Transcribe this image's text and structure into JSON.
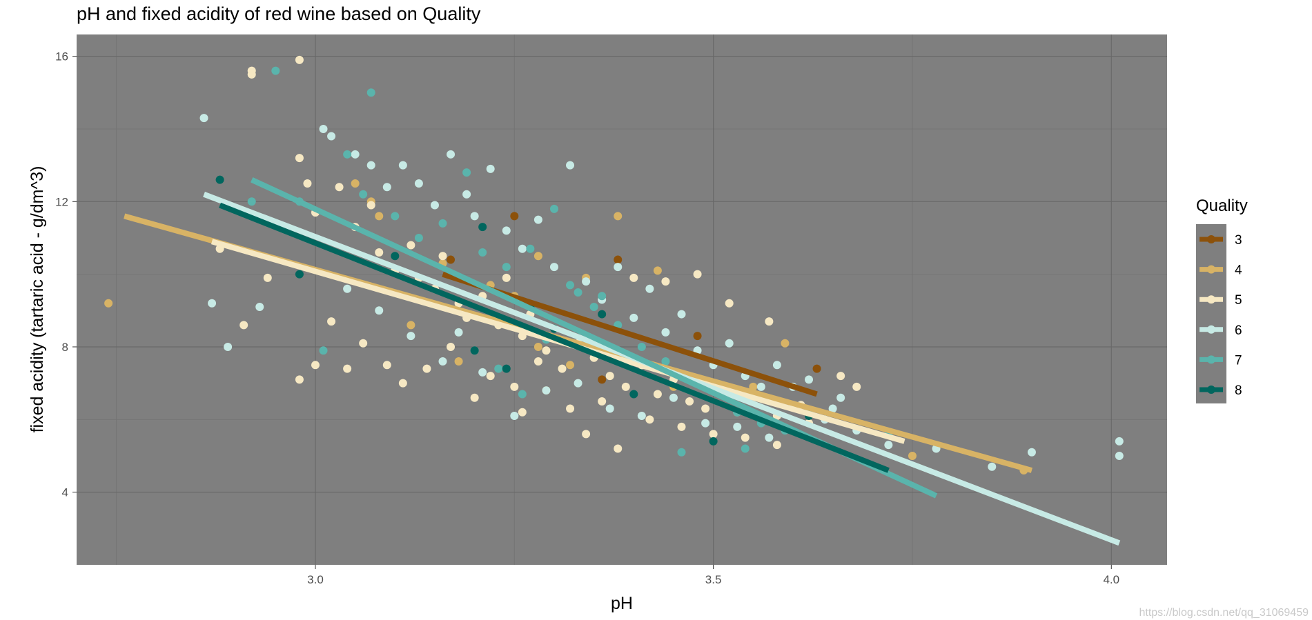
{
  "chart_data": {
    "type": "scatter",
    "title": "pH and fixed acidity of red wine based on Quality",
    "xlabel": "pH",
    "ylabel": "fixed acidity (tartaric acid - g/dm^3)",
    "xlim": [
      2.7,
      4.07
    ],
    "ylim": [
      2.0,
      16.6
    ],
    "xticks": [
      3.0,
      3.5,
      4.0
    ],
    "xtick_labels": [
      "3.0",
      "3.5",
      "4.0"
    ],
    "yticks": [
      4,
      8,
      12,
      16
    ],
    "ytick_labels": [
      "4",
      "8",
      "12",
      "16"
    ],
    "grid": true,
    "panel_background": "#7f7f7f",
    "legend": {
      "title": "Quality",
      "position": "right",
      "background": "#7f7f7f",
      "entries": [
        "3",
        "4",
        "5",
        "6",
        "7",
        "8"
      ]
    },
    "series": [
      {
        "name": "3",
        "color": "#8c510a",
        "points": [
          [
            3.25,
            11.6
          ],
          [
            3.38,
            10.4
          ],
          [
            3.48,
            8.3
          ],
          [
            3.63,
            7.4
          ],
          [
            3.36,
            7.1
          ],
          [
            3.29,
            6.8
          ],
          [
            3.17,
            10.4
          ]
        ],
        "trend": [
          [
            3.16,
            10.0
          ],
          [
            3.63,
            6.7
          ]
        ]
      },
      {
        "name": "4",
        "color": "#d8b365",
        "points": [
          [
            2.74,
            9.2
          ],
          [
            3.05,
            12.5
          ],
          [
            3.07,
            12.0
          ],
          [
            3.08,
            11.6
          ],
          [
            3.16,
            10.3
          ],
          [
            3.28,
            10.5
          ],
          [
            3.38,
            11.6
          ],
          [
            3.22,
            9.7
          ],
          [
            3.34,
            9.9
          ],
          [
            3.43,
            10.1
          ],
          [
            3.59,
            8.1
          ],
          [
            3.28,
            8.0
          ],
          [
            3.32,
            7.5
          ],
          [
            3.45,
            6.9
          ],
          [
            3.55,
            6.9
          ],
          [
            3.89,
            4.6
          ],
          [
            3.75,
            5.0
          ],
          [
            3.18,
            7.6
          ],
          [
            3.12,
            8.6
          ],
          [
            3.25,
            9.4
          ]
        ],
        "trend": [
          [
            2.76,
            11.6
          ],
          [
            3.9,
            4.6
          ]
        ]
      },
      {
        "name": "5",
        "color": "#f6e8c3",
        "points": [
          [
            2.92,
            15.6
          ],
          [
            2.92,
            15.5
          ],
          [
            2.98,
            15.9
          ],
          [
            2.98,
            13.2
          ],
          [
            2.99,
            12.5
          ],
          [
            3.0,
            11.7
          ],
          [
            3.03,
            12.4
          ],
          [
            3.05,
            11.3
          ],
          [
            3.07,
            11.9
          ],
          [
            3.08,
            10.6
          ],
          [
            3.1,
            10.1
          ],
          [
            3.12,
            10.8
          ],
          [
            3.13,
            9.9
          ],
          [
            3.15,
            9.6
          ],
          [
            3.16,
            10.5
          ],
          [
            3.18,
            9.2
          ],
          [
            3.19,
            8.8
          ],
          [
            3.21,
            9.4
          ],
          [
            3.23,
            8.6
          ],
          [
            3.24,
            9.9
          ],
          [
            3.26,
            8.3
          ],
          [
            3.27,
            8.9
          ],
          [
            3.29,
            7.9
          ],
          [
            3.3,
            8.5
          ],
          [
            3.31,
            7.4
          ],
          [
            3.33,
            8.1
          ],
          [
            3.35,
            7.7
          ],
          [
            3.37,
            7.2
          ],
          [
            3.39,
            6.9
          ],
          [
            3.41,
            7.5
          ],
          [
            3.43,
            6.7
          ],
          [
            3.45,
            7.1
          ],
          [
            3.47,
            6.5
          ],
          [
            3.49,
            6.3
          ],
          [
            3.51,
            6.8
          ],
          [
            3.53,
            6.2
          ],
          [
            3.56,
            6.6
          ],
          [
            3.58,
            6.1
          ],
          [
            3.61,
            6.4
          ],
          [
            3.66,
            7.2
          ],
          [
            3.68,
            6.9
          ],
          [
            3.02,
            8.7
          ],
          [
            3.06,
            8.1
          ],
          [
            3.09,
            7.5
          ],
          [
            3.11,
            7.0
          ],
          [
            3.14,
            7.4
          ],
          [
            3.17,
            8.0
          ],
          [
            3.2,
            6.6
          ],
          [
            3.22,
            7.2
          ],
          [
            3.25,
            6.9
          ],
          [
            3.28,
            7.6
          ],
          [
            3.32,
            6.3
          ],
          [
            3.34,
            5.6
          ],
          [
            3.38,
            5.2
          ],
          [
            3.42,
            6.0
          ],
          [
            3.46,
            5.8
          ],
          [
            3.5,
            5.6
          ],
          [
            3.54,
            5.5
          ],
          [
            3.58,
            5.3
          ],
          [
            2.88,
            10.7
          ],
          [
            2.91,
            8.6
          ],
          [
            2.94,
            9.9
          ],
          [
            2.98,
            7.1
          ],
          [
            3.0,
            7.5
          ],
          [
            3.04,
            7.4
          ],
          [
            3.26,
            6.2
          ],
          [
            3.36,
            6.5
          ],
          [
            3.44,
            9.8
          ],
          [
            3.48,
            10.0
          ],
          [
            3.52,
            9.2
          ],
          [
            3.57,
            8.7
          ],
          [
            3.4,
            9.9
          ],
          [
            3.62,
            5.9
          ]
        ],
        "trend": [
          [
            2.87,
            10.9
          ],
          [
            3.74,
            5.4
          ]
        ]
      },
      {
        "name": "6",
        "color": "#c7eae5",
        "points": [
          [
            2.86,
            14.3
          ],
          [
            2.87,
            9.2
          ],
          [
            2.89,
            8.0
          ],
          [
            2.93,
            9.1
          ],
          [
            3.01,
            14.0
          ],
          [
            3.02,
            13.8
          ],
          [
            3.05,
            13.3
          ],
          [
            3.07,
            13.0
          ],
          [
            3.09,
            12.4
          ],
          [
            3.11,
            13.0
          ],
          [
            3.13,
            12.5
          ],
          [
            3.15,
            11.9
          ],
          [
            3.17,
            13.3
          ],
          [
            3.19,
            12.2
          ],
          [
            3.2,
            11.6
          ],
          [
            3.22,
            12.9
          ],
          [
            3.24,
            11.2
          ],
          [
            3.26,
            10.7
          ],
          [
            3.28,
            11.5
          ],
          [
            3.3,
            10.2
          ],
          [
            3.32,
            13.0
          ],
          [
            3.34,
            9.8
          ],
          [
            3.36,
            9.3
          ],
          [
            3.38,
            10.2
          ],
          [
            3.4,
            8.8
          ],
          [
            3.42,
            9.6
          ],
          [
            3.44,
            8.4
          ],
          [
            3.46,
            8.9
          ],
          [
            3.48,
            7.9
          ],
          [
            3.5,
            7.5
          ],
          [
            3.52,
            8.1
          ],
          [
            3.54,
            7.2
          ],
          [
            3.56,
            6.9
          ],
          [
            3.58,
            7.5
          ],
          [
            3.6,
            6.4
          ],
          [
            3.62,
            7.1
          ],
          [
            3.64,
            6.0
          ],
          [
            3.66,
            6.6
          ],
          [
            3.68,
            5.7
          ],
          [
            3.72,
            5.3
          ],
          [
            3.78,
            5.2
          ],
          [
            3.85,
            4.7
          ],
          [
            3.9,
            5.1
          ],
          [
            4.01,
            5.4
          ],
          [
            4.01,
            5.0
          ],
          [
            3.04,
            9.6
          ],
          [
            3.08,
            9.0
          ],
          [
            3.12,
            8.3
          ],
          [
            3.16,
            7.6
          ],
          [
            3.18,
            8.4
          ],
          [
            3.21,
            7.3
          ],
          [
            3.25,
            6.1
          ],
          [
            3.29,
            6.8
          ],
          [
            3.33,
            7.0
          ],
          [
            3.37,
            6.3
          ],
          [
            3.41,
            6.1
          ],
          [
            3.45,
            6.6
          ],
          [
            3.49,
            5.9
          ],
          [
            3.53,
            5.8
          ],
          [
            3.57,
            5.5
          ],
          [
            3.6,
            6.9
          ],
          [
            3.65,
            6.3
          ]
        ],
        "trend": [
          [
            2.86,
            12.2
          ],
          [
            4.01,
            2.6
          ]
        ]
      },
      {
        "name": "7",
        "color": "#5ab4ac",
        "points": [
          [
            2.95,
            15.6
          ],
          [
            3.07,
            15.0
          ],
          [
            3.04,
            13.3
          ],
          [
            3.06,
            12.2
          ],
          [
            3.1,
            11.6
          ],
          [
            3.13,
            11.0
          ],
          [
            3.16,
            11.4
          ],
          [
            3.19,
            12.8
          ],
          [
            3.21,
            10.6
          ],
          [
            3.24,
            10.2
          ],
          [
            3.27,
            10.7
          ],
          [
            3.3,
            11.8
          ],
          [
            3.33,
            9.5
          ],
          [
            3.35,
            9.1
          ],
          [
            3.38,
            8.6
          ],
          [
            3.41,
            8.0
          ],
          [
            3.44,
            7.6
          ],
          [
            3.47,
            7.2
          ],
          [
            3.5,
            6.9
          ],
          [
            3.53,
            6.2
          ],
          [
            3.56,
            5.9
          ],
          [
            3.59,
            5.7
          ],
          [
            3.62,
            6.2
          ],
          [
            3.46,
            5.1
          ],
          [
            3.01,
            7.9
          ],
          [
            3.2,
            7.9
          ],
          [
            3.23,
            7.4
          ],
          [
            3.26,
            6.7
          ],
          [
            3.29,
            8.2
          ],
          [
            3.32,
            9.7
          ],
          [
            3.36,
            9.4
          ],
          [
            2.92,
            12.0
          ],
          [
            2.98,
            12.0
          ],
          [
            3.54,
            5.2
          ],
          [
            3.72,
            5.6
          ]
        ],
        "trend": [
          [
            2.92,
            12.6
          ],
          [
            3.78,
            3.9
          ]
        ]
      },
      {
        "name": "8",
        "color": "#01665e",
        "points": [
          [
            2.88,
            12.6
          ],
          [
            2.98,
            10.0
          ],
          [
            3.21,
            11.3
          ],
          [
            3.2,
            7.9
          ],
          [
            3.24,
            7.4
          ],
          [
            3.3,
            8.5
          ],
          [
            3.36,
            8.9
          ],
          [
            3.5,
            5.4
          ],
          [
            3.62,
            6.1
          ],
          [
            3.4,
            6.7
          ],
          [
            3.27,
            9.1
          ],
          [
            3.1,
            10.5
          ]
        ],
        "trend": [
          [
            2.88,
            11.9
          ],
          [
            3.72,
            4.6
          ]
        ]
      }
    ]
  },
  "watermark": "https://blog.csdn.net/qq_31069459"
}
